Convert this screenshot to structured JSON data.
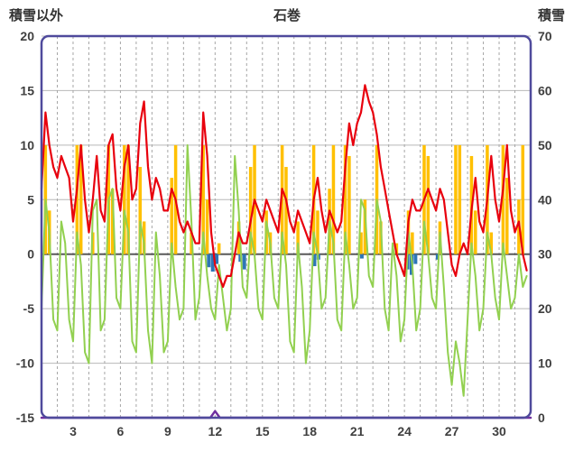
{
  "header": {
    "left_axis_title": "積雪以外",
    "title": "石巻",
    "right_axis_title": "積雪"
  },
  "chart_data": {
    "type": "line",
    "title": "石巻",
    "grid": true,
    "frame_color": "#4f4a9c",
    "zero_line_color": "#595959",
    "grid_color": "#b8b8b8",
    "left_axis": {
      "label": "積雪以外",
      "max": 20,
      "min": -15,
      "ticks": [
        20,
        15,
        10,
        5,
        0,
        -5,
        -10,
        -15
      ]
    },
    "right_axis": {
      "label": "積雪",
      "max": 70,
      "min": 0,
      "ticks": [
        70,
        60,
        50,
        40,
        30,
        20,
        10,
        0
      ]
    },
    "x_axis": {
      "tick_labels": [
        3,
        6,
        9,
        12,
        15,
        18,
        21,
        24,
        27,
        30
      ],
      "min_day": 1,
      "max_day": 32,
      "days": 31,
      "points_per_day": 4
    },
    "series": [
      {
        "name": "sunshine-bars",
        "color": "#ffc000",
        "axis": "left",
        "type": "bar",
        "values": [
          0,
          10,
          4,
          0,
          0,
          0,
          0,
          0,
          0,
          10,
          10,
          0,
          0,
          2,
          0,
          0,
          0,
          10,
          6,
          0,
          0,
          10,
          10,
          0,
          0,
          8,
          3,
          0,
          0,
          0,
          0,
          0,
          0,
          7,
          10,
          0,
          0,
          0,
          2,
          0,
          0,
          10,
          5,
          0,
          0,
          1,
          0,
          0,
          0,
          0,
          3,
          0,
          0,
          8,
          10,
          0,
          0,
          4,
          2,
          0,
          0,
          10,
          8,
          0,
          0,
          3,
          0,
          0,
          0,
          10,
          4,
          0,
          0,
          6,
          10,
          0,
          0,
          10,
          9,
          0,
          0,
          2,
          5,
          0,
          0,
          10,
          3,
          0,
          0,
          0,
          1,
          0,
          0,
          4,
          2,
          0,
          0,
          10,
          9,
          0,
          0,
          3,
          0,
          0,
          0,
          10,
          10,
          0,
          0,
          9,
          4,
          0,
          0,
          10,
          2,
          0,
          0,
          10,
          7,
          0,
          0,
          5,
          10,
          0
        ]
      },
      {
        "name": "precip-bars",
        "color": "#2e75b6",
        "axis": "left",
        "type": "barpoints",
        "points": [
          {
            "t": 11.6,
            "v": -1.2
          },
          {
            "t": 11.85,
            "v": -1.6
          },
          {
            "t": 12.1,
            "v": -0.9
          },
          {
            "t": 13.6,
            "v": -0.7
          },
          {
            "t": 13.85,
            "v": -1.4
          },
          {
            "t": 18.3,
            "v": -1.1
          },
          {
            "t": 18.55,
            "v": -0.5
          },
          {
            "t": 21.3,
            "v": -0.4
          },
          {
            "t": 24.2,
            "v": -1.4
          },
          {
            "t": 24.45,
            "v": -1.9
          },
          {
            "t": 24.7,
            "v": -0.9
          },
          {
            "t": 26.1,
            "v": -0.5
          }
        ]
      },
      {
        "name": "green-line",
        "color": "#92d050",
        "axis": "left",
        "type": "line",
        "width": 2,
        "values": [
          -5,
          5,
          2,
          -6,
          -7,
          3,
          1,
          -6,
          -8,
          2,
          -1,
          -9,
          -10,
          4,
          5,
          -7,
          -6,
          5,
          6,
          -4,
          -5,
          4,
          2,
          -8,
          -9,
          3,
          1,
          -7,
          -10,
          2,
          -2,
          -9,
          -8,
          1,
          -3,
          -6,
          -5,
          10,
          3,
          -6,
          -4,
          2,
          -2,
          -5,
          -6,
          -1,
          -4,
          -7,
          -5,
          9,
          4,
          -3,
          -4,
          2,
          0,
          -5,
          -6,
          3,
          1,
          -4,
          -5,
          2,
          -1,
          -8,
          -9,
          1,
          -3,
          -10,
          -7,
          2,
          0,
          -5,
          -4,
          3,
          1,
          -6,
          -7,
          2,
          -1,
          -5,
          -4,
          5,
          4,
          -2,
          -3,
          5,
          3,
          -5,
          -7,
          1,
          -2,
          -8,
          -6,
          2,
          -1,
          -7,
          -5,
          3,
          0,
          -4,
          -5,
          2,
          -3,
          -9,
          -12,
          -8,
          -10,
          -13,
          -6,
          1,
          -2,
          -7,
          -5,
          2,
          0,
          -4,
          -6,
          1,
          -2,
          -5,
          -4,
          0,
          -3,
          -2
        ]
      },
      {
        "name": "red-line",
        "color": "#e8000d",
        "axis": "left",
        "type": "line",
        "width": 2.2,
        "values": [
          6,
          13,
          10,
          8,
          7,
          9,
          8,
          7,
          3,
          6,
          10,
          5,
          2,
          5,
          9,
          4,
          3,
          10,
          11,
          6,
          4,
          8,
          10,
          5,
          6,
          12,
          14,
          8,
          5,
          7,
          6,
          4,
          4,
          6,
          5,
          3,
          2,
          3,
          2,
          1,
          1,
          13,
          9,
          2,
          -1,
          -2,
          -3,
          -2,
          -2,
          0,
          2,
          1,
          1,
          3,
          5,
          4,
          3,
          5,
          4,
          3,
          2,
          6,
          5,
          3,
          2,
          4,
          3,
          2,
          1,
          5,
          7,
          4,
          2,
          4,
          3,
          2,
          3,
          8,
          12,
          10,
          12,
          13,
          15.5,
          14,
          13,
          11,
          8,
          6,
          4,
          2,
          0,
          -1,
          -2,
          3,
          5,
          4,
          4,
          5,
          6,
          5,
          4,
          6,
          5,
          2,
          -1,
          -2,
          0,
          1,
          0,
          4,
          7,
          3,
          2,
          5,
          9,
          5,
          3,
          6,
          10,
          4,
          2,
          3,
          0,
          -1.5
        ]
      },
      {
        "name": "snow-depth-line",
        "color": "#7030a0",
        "axis": "right",
        "type": "linepoints",
        "width": 2.5,
        "points": [
          {
            "t": 1,
            "v": 0
          },
          {
            "t": 11.7,
            "v": 0
          },
          {
            "t": 12,
            "v": 1.2
          },
          {
            "t": 12.3,
            "v": 0
          },
          {
            "t": 32,
            "v": 0
          }
        ]
      }
    ]
  }
}
